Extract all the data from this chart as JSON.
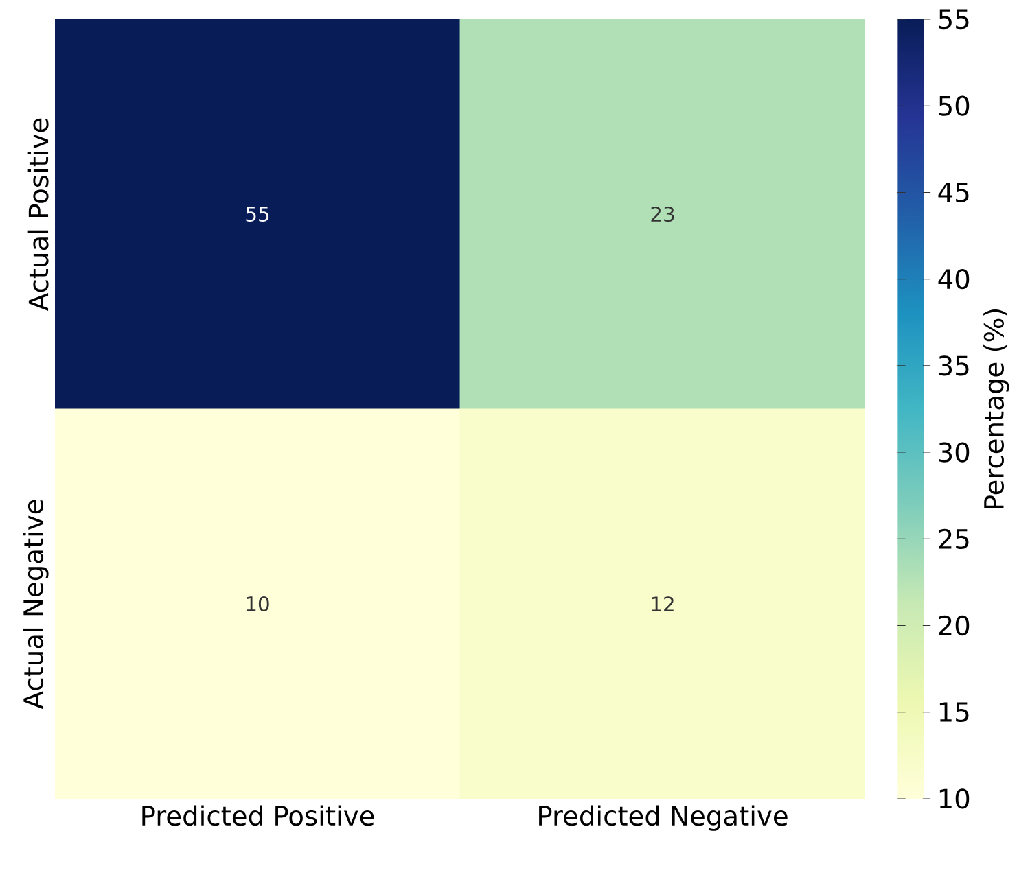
{
  "chart_data": {
    "type": "heatmap",
    "categories": [
      "Predicted Positive",
      "Predicted Negative"
    ],
    "y_categories": [
      "Actual Positive",
      "Actual Negative"
    ],
    "cells": [
      [
        55,
        23
      ],
      [
        10,
        12
      ]
    ],
    "data_labels": true,
    "clim": [
      10,
      55
    ],
    "cticks": [
      10,
      15,
      20,
      25,
      30,
      35,
      40,
      45,
      50,
      55
    ],
    "clabel": "Percentage (%)"
  }
}
